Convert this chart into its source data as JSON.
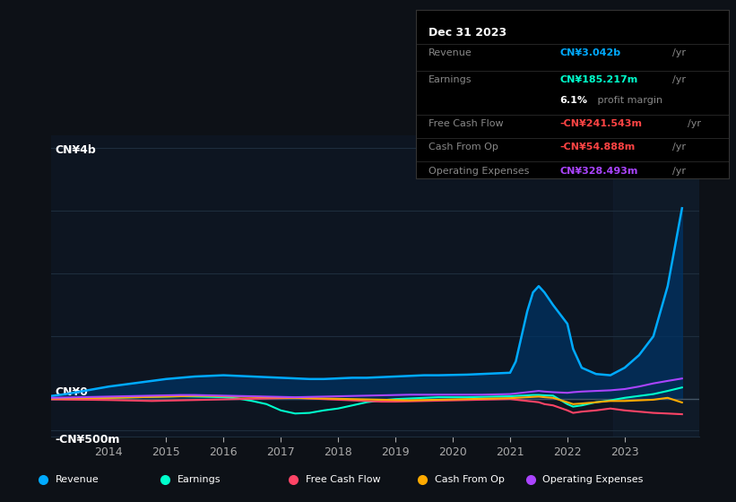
{
  "bg_color": "#0d1117",
  "plot_bg_color": "#0d1521",
  "grid_color": "#1e2d3d",
  "text_color": "#aaaaaa",
  "title_color": "#ffffff",
  "y_label_top": "CN¥4b",
  "y_label_zero": "CN¥0",
  "y_label_neg": "-CN¥500m",
  "years": [
    2013.0,
    2013.25,
    2013.5,
    2013.75,
    2014.0,
    2014.25,
    2014.5,
    2014.75,
    2015.0,
    2015.25,
    2015.5,
    2015.75,
    2016.0,
    2016.25,
    2016.5,
    2016.75,
    2017.0,
    2017.25,
    2017.5,
    2017.75,
    2018.0,
    2018.25,
    2018.5,
    2018.75,
    2019.0,
    2019.25,
    2019.5,
    2019.75,
    2020.0,
    2020.25,
    2020.5,
    2020.75,
    2021.0,
    2021.1,
    2021.2,
    2021.3,
    2021.4,
    2021.5,
    2021.6,
    2021.75,
    2022.0,
    2022.1,
    2022.25,
    2022.5,
    2022.75,
    2023.0,
    2023.25,
    2023.5,
    2023.75,
    2024.0
  ],
  "revenue": [
    50,
    80,
    120,
    160,
    200,
    230,
    260,
    290,
    320,
    340,
    360,
    370,
    380,
    370,
    360,
    350,
    340,
    330,
    320,
    320,
    330,
    340,
    340,
    350,
    360,
    370,
    380,
    380,
    385,
    390,
    400,
    410,
    420,
    600,
    1000,
    1400,
    1700,
    1800,
    1700,
    1500,
    1200,
    800,
    500,
    400,
    380,
    500,
    700,
    1000,
    1800,
    3042
  ],
  "earnings": [
    0,
    5,
    10,
    15,
    20,
    25,
    30,
    35,
    40,
    45,
    40,
    35,
    30,
    10,
    -30,
    -80,
    -180,
    -230,
    -220,
    -180,
    -150,
    -100,
    -50,
    -20,
    0,
    10,
    20,
    30,
    30,
    30,
    35,
    40,
    45,
    50,
    55,
    60,
    65,
    65,
    60,
    55,
    -80,
    -120,
    -100,
    -50,
    -20,
    20,
    50,
    80,
    130,
    185
  ],
  "free_cash_flow": [
    -5,
    -8,
    -10,
    -12,
    -15,
    -20,
    -25,
    -30,
    -25,
    -20,
    -15,
    -10,
    -5,
    0,
    5,
    10,
    15,
    20,
    10,
    0,
    -10,
    -20,
    -30,
    -40,
    -40,
    -35,
    -30,
    -25,
    -20,
    -15,
    -10,
    -5,
    0,
    -10,
    -20,
    -30,
    -40,
    -50,
    -80,
    -100,
    -180,
    -220,
    -200,
    -180,
    -150,
    -180,
    -200,
    -220,
    -230,
    -241
  ],
  "cash_from_op": [
    10,
    12,
    15,
    18,
    20,
    25,
    30,
    35,
    40,
    45,
    50,
    50,
    45,
    40,
    35,
    30,
    25,
    20,
    15,
    10,
    5,
    0,
    -5,
    -10,
    -15,
    -20,
    -15,
    -10,
    -5,
    0,
    5,
    10,
    15,
    20,
    25,
    30,
    35,
    40,
    30,
    20,
    -50,
    -80,
    -70,
    -50,
    -30,
    -30,
    -20,
    -10,
    20,
    -54
  ],
  "operating_expenses": [
    20,
    25,
    30,
    35,
    40,
    45,
    50,
    55,
    60,
    65,
    65,
    60,
    55,
    50,
    45,
    40,
    35,
    30,
    35,
    40,
    45,
    50,
    55,
    60,
    65,
    70,
    70,
    70,
    70,
    70,
    70,
    75,
    80,
    90,
    100,
    110,
    120,
    130,
    120,
    110,
    100,
    110,
    120,
    130,
    140,
    160,
    200,
    250,
    290,
    328
  ],
  "revenue_color": "#00aaff",
  "earnings_color": "#00ffcc",
  "fcf_color": "#ff4466",
  "cashop_color": "#ffaa00",
  "opex_color": "#aa44ff",
  "revenue_fill": "#003366",
  "info_box": {
    "date": "Dec 31 2023",
    "revenue_label": "Revenue",
    "revenue_value": "CN¥3.042b",
    "revenue_color": "#00aaff",
    "earnings_label": "Earnings",
    "earnings_value": "CN¥185.217m",
    "earnings_color": "#00ffcc",
    "margin_bold": "6.1%",
    "margin_rest": " profit margin",
    "fcf_label": "Free Cash Flow",
    "fcf_value": "-CN¥241.543m",
    "fcf_color": "#ff4444",
    "cashop_label": "Cash From Op",
    "cashop_value": "-CN¥54.888m",
    "cashop_color": "#ff4444",
    "opex_label": "Operating Expenses",
    "opex_value": "CN¥328.493m",
    "opex_color": "#aa44ff"
  },
  "legend_items": [
    {
      "label": "Revenue",
      "color": "#00aaff"
    },
    {
      "label": "Earnings",
      "color": "#00ffcc"
    },
    {
      "label": "Free Cash Flow",
      "color": "#ff4466"
    },
    {
      "label": "Cash From Op",
      "color": "#ffaa00"
    },
    {
      "label": "Operating Expenses",
      "color": "#aa44ff"
    }
  ],
  "x_ticks": [
    2014,
    2015,
    2016,
    2017,
    2018,
    2019,
    2020,
    2021,
    2022,
    2023
  ],
  "y_min": -600,
  "y_max": 4200
}
